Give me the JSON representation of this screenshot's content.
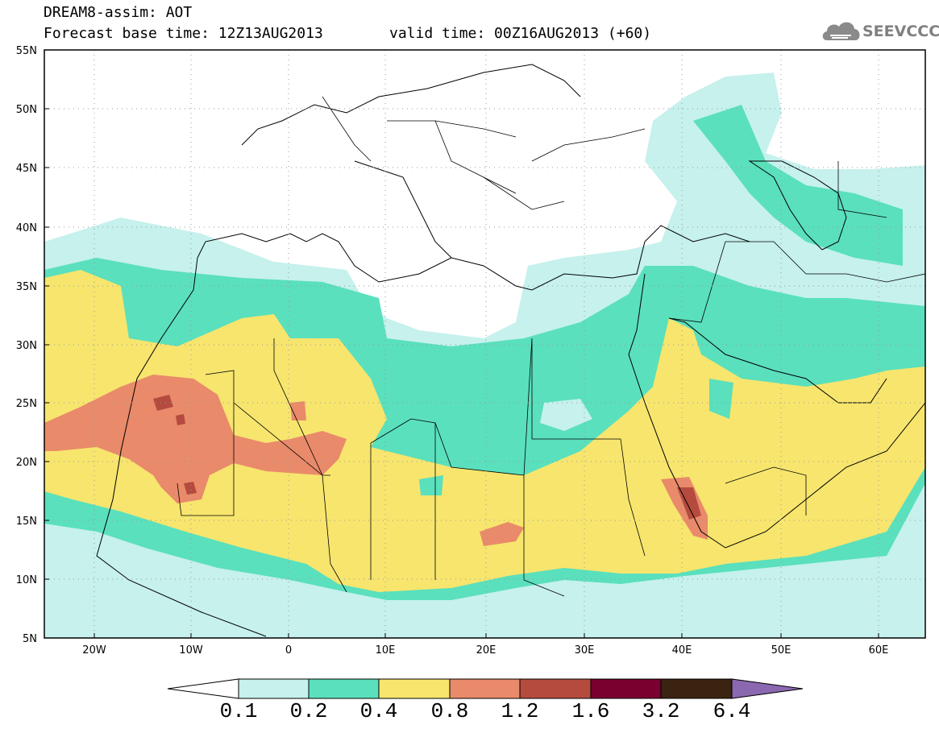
{
  "header": {
    "title": "DREAM8-assim: AOT",
    "base_time": "Forecast base time: 12Z13AUG2013",
    "valid_time": "valid time: 00Z16AUG2013 (+60)",
    "logo_text": "SEEVCCC"
  },
  "axes": {
    "lat_labels": [
      "55N",
      "50N",
      "45N",
      "40N",
      "35N",
      "30N",
      "25N",
      "20N",
      "15N",
      "10N",
      "5N"
    ],
    "lon_labels": [
      "20W",
      "10W",
      "0",
      "10E",
      "20E",
      "30E",
      "40E",
      "50E",
      "60E"
    ]
  },
  "colorbar": {
    "labels": [
      "0.1",
      "0.2",
      "0.4",
      "0.8",
      "1.2",
      "1.6",
      "3.2",
      "6.4"
    ],
    "colors": [
      "#ffffff",
      "#c6f1ec",
      "#5ae0bc",
      "#f7e56e",
      "#e98a6a",
      "#b44b3e",
      "#7a0030",
      "#3a2311",
      "#8b68b0"
    ]
  },
  "legend_colors": {
    "c01": "#c6f1ec",
    "c02": "#5ae0bc",
    "c04": "#f7e56e",
    "c08": "#e98a6a",
    "c12": "#b44b3e"
  }
}
